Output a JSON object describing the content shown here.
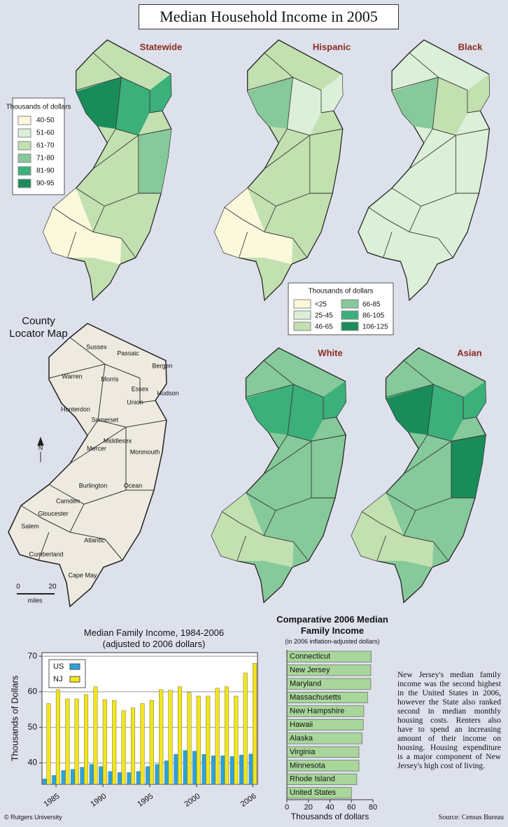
{
  "title": "Median Household Income in 2005",
  "maps": {
    "statewide": {
      "title": "Statewide",
      "legend_title": "Thousands of dollars",
      "legend": [
        {
          "label": "40-50",
          "color": "#fbf8dc"
        },
        {
          "label": "51-60",
          "color": "#dcefd8"
        },
        {
          "label": "61-70",
          "color": "#c2e0b0"
        },
        {
          "label": "71-80",
          "color": "#86c99a"
        },
        {
          "label": "81-90",
          "color": "#3bb07a"
        },
        {
          "label": "90-95",
          "color": "#1a8c5a"
        }
      ]
    },
    "hispanic": {
      "title": "Hispanic"
    },
    "black": {
      "title": "Black"
    },
    "white": {
      "title": "White"
    },
    "asian": {
      "title": "Asian"
    },
    "group_legend_title": "Thousands of dollars",
    "group_legend": [
      {
        "label": "<25",
        "color": "#fbf8dc"
      },
      {
        "label": "25-45",
        "color": "#dcefd8"
      },
      {
        "label": "46-65",
        "color": "#c2e0b0"
      },
      {
        "label": "66-85",
        "color": "#86c99a"
      },
      {
        "label": "86-105",
        "color": "#3bb07a"
      },
      {
        "label": "106-125",
        "color": "#1a8c5a"
      }
    ],
    "locator": {
      "title": "County Locator Map",
      "north": "N",
      "scale_start": "0",
      "scale_end": "20",
      "scale_unit": "miles",
      "counties": [
        "Sussex",
        "Passaic",
        "Bergen",
        "Warren",
        "Morris",
        "Essex",
        "Hudson",
        "Hunterdon",
        "Union",
        "Somerset",
        "Middlesex",
        "Mercer",
        "Monmouth",
        "Burlington",
        "Ocean",
        "Camden",
        "Gloucester",
        "Salem",
        "Atlantic",
        "Cumberland",
        "Cape May"
      ]
    }
  },
  "chart_data": [
    {
      "type": "bar",
      "title": "Median Family Income, 1984-2006",
      "subtitle": "(adjusted to 2006 dollars)",
      "ylabel": "Thousands of Dollars",
      "categories": [
        null,
        "1985",
        null,
        null,
        null,
        null,
        "1990",
        null,
        null,
        null,
        null,
        "1995",
        null,
        null,
        null,
        null,
        "2000",
        null,
        null,
        null,
        null,
        null,
        "2006"
      ],
      "series": [
        {
          "name": "US",
          "color": "#2aa3dc",
          "values": [
            35.5,
            36.5,
            37.9,
            38.2,
            38.8,
            39.6,
            39.0,
            37.6,
            37.3,
            37.3,
            37.6,
            39.0,
            39.6,
            40.6,
            42.4,
            43.5,
            43.3,
            42.4,
            42.0,
            42.0,
            41.8,
            42.2,
            42.5
          ]
        },
        {
          "name": "NJ",
          "color": "#f2e51c",
          "values": [
            56.7,
            60.6,
            58.0,
            58.0,
            59.2,
            61.4,
            57.8,
            57.6,
            54.7,
            55.5,
            56.7,
            57.6,
            60.6,
            60.4,
            61.4,
            59.8,
            58.8,
            58.8,
            61.0,
            61.4,
            58.8,
            65.3,
            68.0
          ]
        }
      ],
      "ylim": [
        34,
        71
      ],
      "yticks": [
        40,
        50,
        60,
        70
      ],
      "grid": true
    },
    {
      "type": "hbar",
      "title": "Comparative 2006 Median Family Income",
      "subtitle": "(in 2006 inflation-adjusted dollars)",
      "xlabel": "Thousands of dollars",
      "categories": [
        "Connecticut",
        "New Jersey",
        "Maryland",
        "Massachusetts",
        "New Hampshire",
        "Hawaii",
        "Alaska",
        "Virginia",
        "Minnesota",
        "Rhode Island",
        "United States"
      ],
      "values": [
        78.5,
        78,
        78,
        75,
        71.5,
        71,
        70,
        67,
        67,
        65,
        60
      ],
      "color": "#a9d69a",
      "xlim": [
        0,
        80
      ],
      "xticks": [
        0,
        20,
        40,
        60,
        80
      ]
    }
  ],
  "note": "New Jersey's median family income was the second highest in the United States in 2006, however the State also ranked second in median monthly housing costs. Renters also have to spend an increasing amount of their income on housing. Housing expenditure is a major component of New Jersey's high cost of living.",
  "source": "Source: Census Bureau",
  "copyright": "© Rutgers University"
}
